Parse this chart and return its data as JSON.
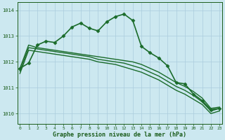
{
  "bg_color": "#cce8f0",
  "grid_color": "#aaccdd",
  "line_color": "#1a6b2a",
  "text_color": "#1a5c1a",
  "xlabel": "Graphe pression niveau de la mer (hPa)",
  "ylim": [
    1009.6,
    1014.3
  ],
  "xlim": [
    -0.3,
    23.3
  ],
  "yticks": [
    1010,
    1011,
    1012,
    1013,
    1014
  ],
  "xticks": [
    0,
    1,
    2,
    3,
    4,
    5,
    6,
    7,
    8,
    9,
    10,
    11,
    12,
    13,
    14,
    15,
    16,
    17,
    18,
    19,
    20,
    21,
    22,
    23
  ],
  "series": [
    {
      "x": [
        0,
        1,
        2,
        3,
        4,
        5,
        6,
        7,
        8,
        9,
        10,
        11,
        12,
        13,
        14,
        15,
        16,
        17,
        18,
        19,
        20,
        21,
        22,
        23
      ],
      "y": [
        1011.75,
        1011.95,
        1012.65,
        1012.8,
        1012.75,
        1013.0,
        1013.35,
        1013.5,
        1013.3,
        1013.2,
        1013.55,
        1013.75,
        1013.85,
        1013.6,
        1012.6,
        1012.35,
        1012.15,
        1011.85,
        1011.2,
        1011.15,
        1010.75,
        1010.5,
        1010.15,
        1010.2
      ],
      "marker": "D",
      "markersize": 2.5,
      "linewidth": 1.2
    },
    {
      "x": [
        0,
        1,
        2,
        3,
        4,
        5,
        6,
        7,
        8,
        9,
        10,
        11,
        12,
        13,
        14,
        15,
        16,
        17,
        18,
        19,
        20,
        21,
        22,
        23
      ],
      "y": [
        1011.75,
        1012.65,
        1012.55,
        1012.5,
        1012.45,
        1012.4,
        1012.35,
        1012.3,
        1012.25,
        1012.2,
        1012.15,
        1012.1,
        1012.05,
        1012.0,
        1011.9,
        1011.75,
        1011.6,
        1011.4,
        1011.2,
        1011.05,
        1010.85,
        1010.6,
        1010.2,
        1010.25
      ],
      "marker": null,
      "markersize": 0,
      "linewidth": 1.0
    },
    {
      "x": [
        0,
        1,
        2,
        3,
        4,
        5,
        6,
        7,
        8,
        9,
        10,
        11,
        12,
        13,
        14,
        15,
        16,
        17,
        18,
        19,
        20,
        21,
        22,
        23
      ],
      "y": [
        1011.65,
        1012.55,
        1012.5,
        1012.45,
        1012.4,
        1012.35,
        1012.3,
        1012.25,
        1012.2,
        1012.1,
        1012.05,
        1012.0,
        1011.95,
        1011.85,
        1011.75,
        1011.6,
        1011.45,
        1011.25,
        1011.05,
        1010.9,
        1010.7,
        1010.45,
        1010.1,
        1010.2
      ],
      "marker": null,
      "markersize": 0,
      "linewidth": 1.0
    },
    {
      "x": [
        0,
        1,
        2,
        3,
        4,
        5,
        6,
        7,
        8,
        9,
        10,
        11,
        12,
        13,
        14,
        15,
        16,
        17,
        18,
        19,
        20,
        21,
        22,
        23
      ],
      "y": [
        1011.55,
        1012.45,
        1012.4,
        1012.35,
        1012.3,
        1012.25,
        1012.2,
        1012.15,
        1012.1,
        1012.0,
        1011.95,
        1011.9,
        1011.8,
        1011.7,
        1011.6,
        1011.45,
        1011.3,
        1011.1,
        1010.9,
        1010.75,
        1010.55,
        1010.35,
        1010.0,
        1010.1
      ],
      "marker": null,
      "markersize": 0,
      "linewidth": 1.0
    }
  ],
  "figwidth": 3.2,
  "figheight": 2.0,
  "dpi": 100
}
